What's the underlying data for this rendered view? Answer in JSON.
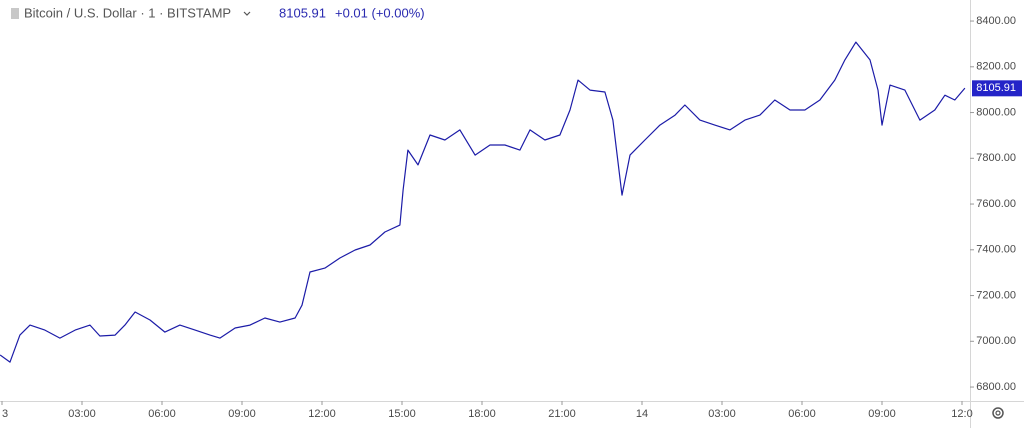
{
  "chart_data": {
    "type": "line",
    "title": "Bitcoin / U.S. Dollar · 1 · BITSTAMP",
    "last_price": 8105.91,
    "change": "+0.01 (+0.00%)",
    "color": "#1c1ca8",
    "x": [
      -0.07,
      0.3,
      0.67,
      1.05,
      1.61,
      2.17,
      2.74,
      3.3,
      3.67,
      4.24,
      4.61,
      4.99,
      5.55,
      6.11,
      6.67,
      7.24,
      7.8,
      8.17,
      8.74,
      9.3,
      9.86,
      10.42,
      10.99,
      11.25,
      11.55,
      12.11,
      12.67,
      13.24,
      13.8,
      14.36,
      14.92,
      15.04,
      15.22,
      15.6,
      16.05,
      16.61,
      17.17,
      17.74,
      18.3,
      18.86,
      19.42,
      19.8,
      20.36,
      20.92,
      21.3,
      21.6,
      22.05,
      22.61,
      22.91,
      23.25,
      23.55,
      24.11,
      24.67,
      25.24,
      25.61,
      26.17,
      26.73,
      27.3,
      27.86,
      28.42,
      28.98,
      29.55,
      30.11,
      30.67,
      31.23,
      31.61,
      32.02,
      32.55,
      32.85,
      33.0,
      33.3,
      33.86,
      34.42,
      34.98,
      35.36,
      35.73,
      36.11
    ],
    "values": [
      6940,
      6909,
      7027,
      7071,
      7049,
      7014,
      7049,
      7071,
      7023,
      7027,
      7071,
      7128,
      7093,
      7040,
      7071,
      7049,
      7027,
      7014,
      7058,
      7071,
      7102,
      7084,
      7102,
      7158,
      7303,
      7320,
      7364,
      7399,
      7421,
      7478,
      7508,
      7661,
      7836,
      7771,
      7902,
      7880,
      7924,
      7814,
      7858,
      7858,
      7836,
      7924,
      7880,
      7902,
      8011,
      8142,
      8098,
      8090,
      7967,
      7639,
      7814,
      7880,
      7945,
      7989,
      8033,
      7967,
      7945,
      7924,
      7967,
      7989,
      8055,
      8011,
      8011,
      8055,
      8142,
      8230,
      8308,
      8230,
      8098,
      7945,
      8120,
      8098,
      7967,
      8011,
      8076,
      8055,
      8107
    ],
    "xlim": [
      -0.075,
      36.3
    ],
    "ylim": [
      6739,
      8492
    ],
    "xticks": [
      {
        "value": 0,
        "label": "3"
      },
      {
        "value": 3,
        "label": "03:00"
      },
      {
        "value": 6,
        "label": "06:00"
      },
      {
        "value": 9,
        "label": "09:00"
      },
      {
        "value": 12,
        "label": "12:00"
      },
      {
        "value": 15,
        "label": "15:00"
      },
      {
        "value": 18,
        "label": "18:00"
      },
      {
        "value": 21,
        "label": "21:00"
      },
      {
        "value": 24,
        "label": "14"
      },
      {
        "value": 27,
        "label": "03:00"
      },
      {
        "value": 30,
        "label": "06:00"
      },
      {
        "value": 33,
        "label": "09:00"
      },
      {
        "value": 36,
        "label": "12:0"
      }
    ],
    "yticks": [
      {
        "value": 6800,
        "label": "6800.00"
      },
      {
        "value": 7000,
        "label": "7000.00"
      },
      {
        "value": 7200,
        "label": "7200.00"
      },
      {
        "value": 7400,
        "label": "7400.00"
      },
      {
        "value": 7600,
        "label": "7600.00"
      },
      {
        "value": 7800,
        "label": "7800.00"
      },
      {
        "value": 8000,
        "label": "8000.00"
      },
      {
        "value": 8200,
        "label": "8200.00"
      },
      {
        "value": 8400,
        "label": "8400.00"
      }
    ]
  }
}
